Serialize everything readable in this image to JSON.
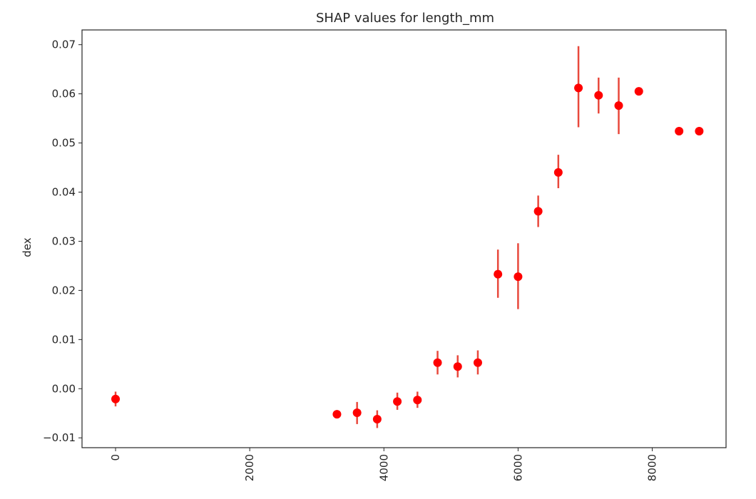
{
  "chart_data": {
    "type": "scatter",
    "title": "SHAP values for length_mm",
    "xlabel": "",
    "ylabel": "dex",
    "xlim": [
      -500,
      9100
    ],
    "ylim": [
      -0.012,
      0.073
    ],
    "xticks": [
      0,
      2000,
      4000,
      6000,
      8000
    ],
    "yticks": [
      -0.01,
      0.0,
      0.01,
      0.02,
      0.03,
      0.04,
      0.05,
      0.06,
      0.07
    ],
    "ytick_labels": [
      "−0.01",
      "0.00",
      "0.01",
      "0.02",
      "0.03",
      "0.04",
      "0.05",
      "0.06",
      "0.07"
    ],
    "xtick_rotation": 90,
    "grid": false,
    "color": "#ff0000",
    "errorbar_color": "#e8483c",
    "points": [
      {
        "x": 0,
        "y": -0.0021,
        "lo": -0.0036,
        "hi": -0.0006
      },
      {
        "x": 3300,
        "y": -0.0052,
        "lo": -0.0052,
        "hi": -0.0052
      },
      {
        "x": 3600,
        "y": -0.0049,
        "lo": -0.0072,
        "hi": -0.0027
      },
      {
        "x": 3900,
        "y": -0.0062,
        "lo": -0.008,
        "hi": -0.0044
      },
      {
        "x": 4200,
        "y": -0.0026,
        "lo": -0.0043,
        "hi": -0.0008
      },
      {
        "x": 4500,
        "y": -0.0023,
        "lo": -0.0039,
        "hi": -0.0006
      },
      {
        "x": 4800,
        "y": 0.0053,
        "lo": 0.0029,
        "hi": 0.0077
      },
      {
        "x": 5100,
        "y": 0.0045,
        "lo": 0.0023,
        "hi": 0.0068
      },
      {
        "x": 5400,
        "y": 0.0053,
        "lo": 0.0029,
        "hi": 0.0078
      },
      {
        "x": 5700,
        "y": 0.0233,
        "lo": 0.0185,
        "hi": 0.0283
      },
      {
        "x": 6000,
        "y": 0.0228,
        "lo": 0.0162,
        "hi": 0.0296
      },
      {
        "x": 6300,
        "y": 0.0361,
        "lo": 0.0329,
        "hi": 0.0393
      },
      {
        "x": 6600,
        "y": 0.044,
        "lo": 0.0408,
        "hi": 0.0476
      },
      {
        "x": 6900,
        "y": 0.0612,
        "lo": 0.0532,
        "hi": 0.0697
      },
      {
        "x": 7200,
        "y": 0.0597,
        "lo": 0.056,
        "hi": 0.0633
      },
      {
        "x": 7500,
        "y": 0.0576,
        "lo": 0.0518,
        "hi": 0.0633
      },
      {
        "x": 7800,
        "y": 0.0605,
        "lo": 0.0605,
        "hi": 0.0605
      },
      {
        "x": 8400,
        "y": 0.0524,
        "lo": 0.0524,
        "hi": 0.0524
      },
      {
        "x": 8700,
        "y": 0.0524,
        "lo": 0.0524,
        "hi": 0.0524
      }
    ]
  }
}
